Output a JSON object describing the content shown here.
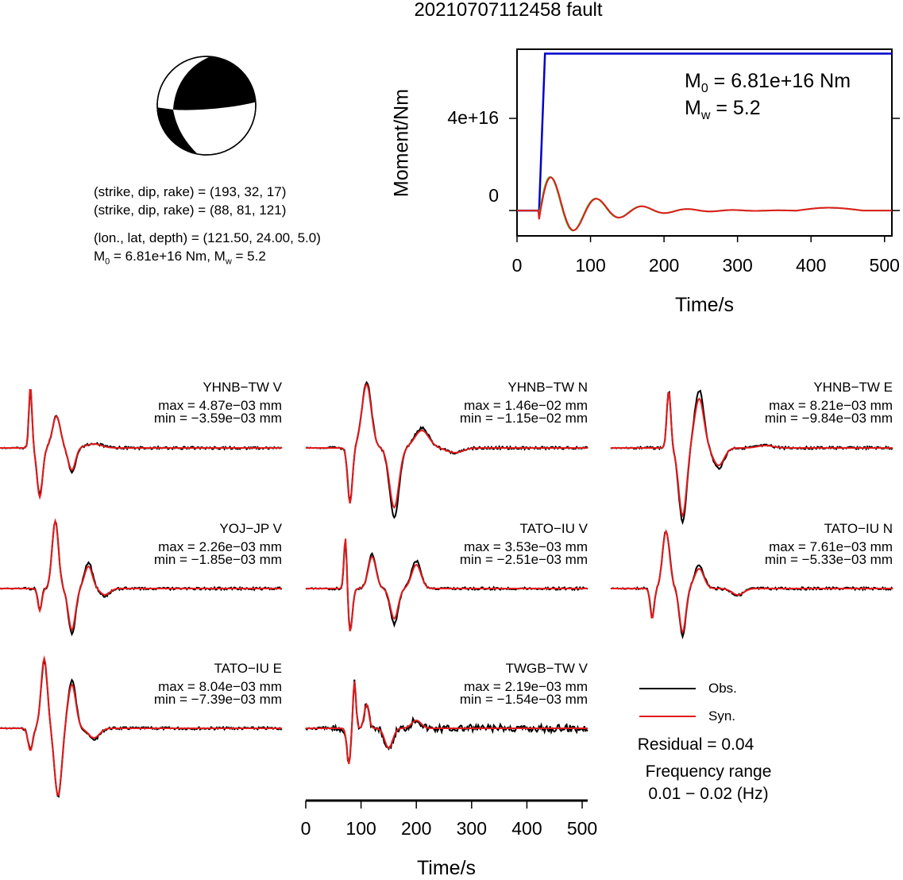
{
  "title": "20210707112458 fault",
  "info": {
    "plane1": "(strike, dip, rake) = (193, 32, 17)",
    "plane2": "(strike, dip, rake) = (88, 81, 121)",
    "location": "(lon., lat, depth) = (121.50, 24.00, 5.0)",
    "moment_prefix": "M",
    "moment_sub": "0",
    "moment_val": " = 6.81e+16 Nm, M",
    "mw_sub": "w",
    "mw_val": " = 5.2"
  },
  "colors": {
    "obs": "#000000",
    "syn": "#e41a1c",
    "stf_moment": "#0000cc",
    "stf_rate_syn": "#e41a1c",
    "stf_rate_obs": "#33cc33"
  },
  "moment_plot": {
    "ylabel": "Moment/Nm",
    "xlabel": "Time/s",
    "m0_prefix": "M",
    "m0_sub": "0",
    "m0_val": " = 6.81e+16 Nm",
    "mw_prefix": "M",
    "mw_sub": "w",
    "mw_val": " = 5.2",
    "yticks": [
      "4e+16",
      "0"
    ],
    "xticks": [
      "0",
      "100",
      "200",
      "300",
      "400",
      "500"
    ]
  },
  "waveform_axis": {
    "xlabel": "Time/s",
    "xticks": [
      "0",
      "100",
      "200",
      "300",
      "400",
      "500"
    ]
  },
  "traces": [
    {
      "title": "YHNB−TW V",
      "max": "max = 4.87e−03 mm",
      "min": "min = −3.59e−03 mm"
    },
    {
      "title": "YHNB−TW N",
      "max": "max = 1.46e−02 mm",
      "min": "min = −1.15e−02 mm"
    },
    {
      "title": "YHNB−TW E",
      "max": "max = 8.21e−03 mm",
      "min": "min = −9.84e−03 mm"
    },
    {
      "title": "YOJ−JP V",
      "max": "max = 2.26e−03 mm",
      "min": "min = −1.85e−03 mm"
    },
    {
      "title": "TATO−IU V",
      "max": "max = 3.53e−03 mm",
      "min": "min = −2.51e−03 mm"
    },
    {
      "title": "TATO−IU N",
      "max": "max = 7.61e−03 mm",
      "min": "min = −5.33e−03 mm"
    },
    {
      "title": "TATO−IU E",
      "max": "max = 8.04e−03 mm",
      "min": "min = −7.39e−03 mm"
    },
    {
      "title": "TWGB−TW V",
      "max": "max = 2.19e−03 mm",
      "min": "min = −1.54e−03 mm"
    }
  ],
  "legend": {
    "obs": "Obs.",
    "syn": "Syn."
  },
  "residual": "Residual = 0.04",
  "freq_label": "Frequency range",
  "freq_value": "0.01 − 0.02 (Hz)",
  "chart_data": {
    "type": "line",
    "title": "20210707112458 fault",
    "moment_function": {
      "xlabel": "Time/s",
      "ylabel": "Moment/Nm",
      "xlim": [
        0,
        510
      ],
      "ylim": [
        -1.1e+16,
        7e+16
      ],
      "series": [
        {
          "name": "",
          "x": [
            0,
            30,
            38,
            510
          ],
          "y": [
            0,
            0,
            6.81e+16,
            6.81e+16
          ]
        }
      ]
    },
    "waveform_xlim": [
      0,
      510
    ],
    "stations": [
      "YHNB−TW V",
      "YHNB−TW N",
      "YHNB−TW E",
      "YOJ−JP V",
      "TATO−IU V",
      "TATO−IU N",
      "TATO−IU E",
      "TWGB−TW V"
    ],
    "residual": 0.04,
    "frequency_range_hz": [
      0.01,
      0.02
    ]
  }
}
